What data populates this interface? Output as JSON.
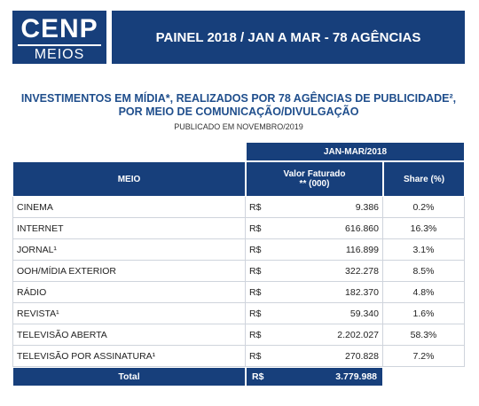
{
  "header": {
    "logo_name": "CENP",
    "logo_sub": "MEIOS",
    "banner": "PAINEL 2018 / JAN A MAR - 78 AGÊNCIAS"
  },
  "title": "INVESTIMENTOS EM MÍDIA*, REALIZADOS POR 78 AGÊNCIAS DE PUBLICIDADE², POR MEIO DE COMUNICAÇÃO/DIVULGAÇÃO",
  "subtitle": "PUBLICADO EM NOVEMBRO/2019",
  "table": {
    "period": "JAN-MAR/2018",
    "columns": [
      "MEIO",
      "Valor Faturado ** (000)",
      "Share (%)"
    ],
    "rows": [
      [
        "CINEMA",
        "R$",
        "9.386",
        "0.2%"
      ],
      [
        "INTERNET",
        "R$",
        "616.860",
        "16.3%"
      ],
      [
        "JORNAL¹",
        "R$",
        "116.899",
        "3.1%"
      ],
      [
        "OOH/MÍDIA EXTERIOR",
        "R$",
        "322.278",
        "8.5%"
      ],
      [
        "RÁDIO",
        "R$",
        "182.370",
        "4.8%"
      ],
      [
        "REVISTA¹",
        "R$",
        "59.340",
        "1.6%"
      ],
      [
        "TELEVISÃO ABERTA",
        "R$",
        "2.202.027",
        "58.3%"
      ],
      [
        "TELEVISÃO POR ASSINATURA¹",
        "R$",
        "270.828",
        "7.2%"
      ]
    ],
    "total": [
      "Total",
      "R$",
      "3.779.988"
    ]
  }
}
